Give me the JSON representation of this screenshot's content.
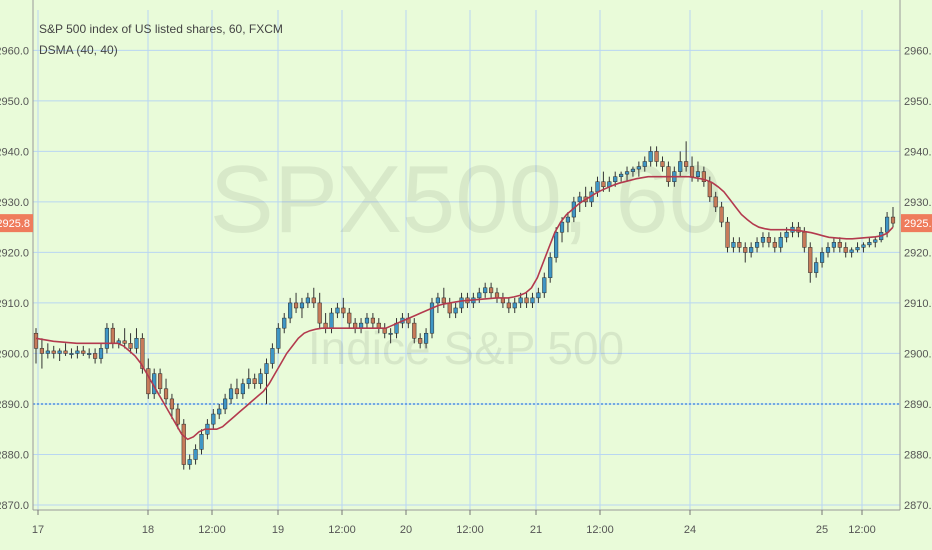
{
  "header": {
    "title": "S&P 500 index of US listed shares, 60, FXCM",
    "indicator": "DSMA (40, 40)"
  },
  "watermark": {
    "symbol": "SPX500, 60",
    "description": "Indice S&P 500"
  },
  "last_price_label": "2925.8",
  "chart_data": {
    "type": "candlestick",
    "y_ticks": [
      "2870.0",
      "2880.0",
      "2890.0",
      "2900.0",
      "2910.0",
      "2920.0",
      "2930.0",
      "2940.0",
      "2950.0",
      "2960.0"
    ],
    "x_labels": [
      "17",
      "18",
      "12:00",
      "19",
      "12:00",
      "20",
      "12:00",
      "21",
      "12:00",
      "24",
      "25",
      "12:00"
    ],
    "ylim": [
      2869,
      2968
    ],
    "last_price": 2925.8,
    "horizontal_line": 2890.0,
    "colors": {
      "up": "#3f96c5",
      "down": "#c77b5a",
      "wick": "#333333",
      "dsma": "#b33a4e",
      "grid": "#b9d6f2",
      "hline": "#4a90e2",
      "price_tag": "#ef7c5c"
    },
    "candles": [
      [
        2904,
        2905,
        2898,
        2901
      ],
      [
        2901,
        2903,
        2897,
        2900
      ],
      [
        2900,
        2902,
        2899,
        2900.5
      ],
      [
        2900.5,
        2901.5,
        2899,
        2900
      ],
      [
        2900,
        2901,
        2898.5,
        2900.5
      ],
      [
        2900.5,
        2902,
        2899.5,
        2900
      ],
      [
        2900,
        2901,
        2899,
        2900
      ],
      [
        2900,
        2901.5,
        2899,
        2900.5
      ],
      [
        2900.5,
        2901.5,
        2899.5,
        2900
      ],
      [
        2900,
        2901,
        2899,
        2900
      ],
      [
        2900,
        2901,
        2898,
        2899
      ],
      [
        2899,
        2902,
        2898,
        2901
      ],
      [
        2901,
        2906,
        2900,
        2905
      ],
      [
        2905,
        2906,
        2901,
        2902
      ],
      [
        2902,
        2903,
        2901,
        2902.5
      ],
      [
        2902.5,
        2905,
        2901,
        2902
      ],
      [
        2902,
        2904,
        2900,
        2901
      ],
      [
        2901,
        2905,
        2900,
        2903
      ],
      [
        2903,
        2904,
        2896,
        2897
      ],
      [
        2897,
        2899,
        2891,
        2892
      ],
      [
        2892,
        2897,
        2891,
        2896
      ],
      [
        2896,
        2897,
        2892,
        2893
      ],
      [
        2893,
        2895,
        2890,
        2891
      ],
      [
        2891,
        2892,
        2887,
        2889
      ],
      [
        2889,
        2890,
        2885,
        2886
      ],
      [
        2886,
        2887,
        2877,
        2878
      ],
      [
        2878,
        2880,
        2877,
        2879
      ],
      [
        2879,
        2882,
        2878,
        2881
      ],
      [
        2881,
        2885,
        2880,
        2884
      ],
      [
        2884,
        2887,
        2883,
        2886
      ],
      [
        2886,
        2889,
        2885,
        2888
      ],
      [
        2888,
        2890,
        2887,
        2889
      ],
      [
        2889,
        2892,
        2888,
        2891
      ],
      [
        2891,
        2894,
        2890,
        2893
      ],
      [
        2893,
        2895,
        2891,
        2892
      ],
      [
        2892,
        2895,
        2891,
        2894
      ],
      [
        2894,
        2897,
        2893,
        2895
      ],
      [
        2895,
        2896,
        2893,
        2894
      ],
      [
        2894,
        2897,
        2893,
        2896
      ],
      [
        2896,
        2899,
        2890,
        2898
      ],
      [
        2898,
        2902,
        2897,
        2901
      ],
      [
        2901,
        2906,
        2900,
        2905
      ],
      [
        2905,
        2908,
        2904,
        2907
      ],
      [
        2907,
        2911,
        2906,
        2910
      ],
      [
        2910,
        2912,
        2908,
        2909
      ],
      [
        2909,
        2911,
        2907,
        2910
      ],
      [
        2910,
        2912,
        2909,
        2911
      ],
      [
        2911,
        2913,
        2909,
        2910
      ],
      [
        2910,
        2912,
        2905,
        2906
      ],
      [
        2906,
        2908,
        2904,
        2905
      ],
      [
        2905,
        2909,
        2904,
        2908
      ],
      [
        2908,
        2910,
        2907,
        2909
      ],
      [
        2909,
        2911,
        2907,
        2908
      ],
      [
        2908,
        2909,
        2905,
        2906
      ],
      [
        2906,
        2907,
        2904,
        2905
      ],
      [
        2905,
        2907,
        2904,
        2906
      ],
      [
        2906,
        2908,
        2905,
        2907
      ],
      [
        2907,
        2908,
        2905,
        2906
      ],
      [
        2906,
        2907,
        2904,
        2905
      ],
      [
        2905,
        2906,
        2903,
        2904
      ],
      [
        2904,
        2905,
        2902,
        2904
      ],
      [
        2904,
        2907,
        2903,
        2906
      ],
      [
        2906,
        2908,
        2905,
        2907
      ],
      [
        2907,
        2908,
        2905,
        2906
      ],
      [
        2906,
        2907,
        2902,
        2903
      ],
      [
        2903,
        2904,
        2901,
        2902
      ],
      [
        2902,
        2905,
        2901,
        2904
      ],
      [
        2904,
        2911,
        2903,
        2910
      ],
      [
        2910,
        2912,
        2908,
        2911
      ],
      [
        2911,
        2913,
        2909,
        2910
      ],
      [
        2910,
        2911,
        2907,
        2908
      ],
      [
        2908,
        2910,
        2907,
        2909
      ],
      [
        2909,
        2912,
        2908,
        2911
      ],
      [
        2911,
        2912,
        2909,
        2910
      ],
      [
        2910,
        2912,
        2909,
        2911
      ],
      [
        2911,
        2913,
        2910,
        2912
      ],
      [
        2912,
        2914,
        2911,
        2913
      ],
      [
        2913,
        2914,
        2911,
        2912
      ],
      [
        2912,
        2913,
        2910,
        2911
      ],
      [
        2911,
        2912,
        2909,
        2910
      ],
      [
        2910,
        2911,
        2908,
        2909
      ],
      [
        2909,
        2911,
        2908,
        2910
      ],
      [
        2910,
        2912,
        2909,
        2911
      ],
      [
        2911,
        2912,
        2909,
        2910
      ],
      [
        2910,
        2912,
        2909,
        2911
      ],
      [
        2911,
        2913,
        2910,
        2912
      ],
      [
        2912,
        2916,
        2911,
        2915
      ],
      [
        2915,
        2920,
        2914,
        2919
      ],
      [
        2919,
        2925,
        2918,
        2924
      ],
      [
        2924,
        2927,
        2922,
        2926
      ],
      [
        2926,
        2928,
        2924,
        2927
      ],
      [
        2927,
        2931,
        2926,
        2930
      ],
      [
        2930,
        2932,
        2928,
        2931
      ],
      [
        2931,
        2933,
        2929,
        2930
      ],
      [
        2930,
        2933,
        2929,
        2932
      ],
      [
        2932,
        2935,
        2931,
        2934
      ],
      [
        2934,
        2936,
        2932,
        2933
      ],
      [
        2933,
        2935,
        2932,
        2934
      ],
      [
        2934,
        2936,
        2933,
        2935
      ],
      [
        2935,
        2936,
        2934,
        2935.5
      ],
      [
        2935.5,
        2937,
        2934,
        2936
      ],
      [
        2936,
        2937,
        2935,
        2936.5
      ],
      [
        2936.5,
        2938,
        2935,
        2937
      ],
      [
        2937,
        2939,
        2936,
        2938
      ],
      [
        2938,
        2941,
        2937,
        2940
      ],
      [
        2940,
        2941,
        2937,
        2938
      ],
      [
        2938,
        2939,
        2936,
        2937
      ],
      [
        2937,
        2938,
        2933,
        2934
      ],
      [
        2934,
        2937,
        2933,
        2936
      ],
      [
        2936,
        2940,
        2935,
        2938
      ],
      [
        2938,
        2942,
        2936,
        2937
      ],
      [
        2937,
        2939,
        2934,
        2935
      ],
      [
        2935,
        2938,
        2934,
        2936
      ],
      [
        2936,
        2937,
        2933,
        2934
      ],
      [
        2934,
        2935,
        2930,
        2931
      ],
      [
        2931,
        2932,
        2928,
        2929
      ],
      [
        2929,
        2930,
        2925,
        2926
      ],
      [
        2926,
        2927,
        2920,
        2921
      ],
      [
        2921,
        2923,
        2920,
        2922
      ],
      [
        2922,
        2923,
        2920,
        2921
      ],
      [
        2921,
        2922,
        2918,
        2920
      ],
      [
        2920,
        2922,
        2919,
        2921
      ],
      [
        2921,
        2923,
        2920,
        2922
      ],
      [
        2922,
        2924,
        2921,
        2923
      ],
      [
        2923,
        2924,
        2921,
        2922
      ],
      [
        2922,
        2923,
        2920,
        2921
      ],
      [
        2921,
        2924,
        2920,
        2923
      ],
      [
        2923,
        2925,
        2922,
        2924
      ],
      [
        2924,
        2926,
        2923,
        2925
      ],
      [
        2925,
        2926,
        2923,
        2924
      ],
      [
        2924,
        2925,
        2920,
        2921
      ],
      [
        2921,
        2922,
        2914,
        2916
      ],
      [
        2916,
        2919,
        2915,
        2918
      ],
      [
        2918,
        2921,
        2917,
        2920
      ],
      [
        2920,
        2922,
        2919,
        2921
      ],
      [
        2921,
        2923,
        2920,
        2922
      ],
      [
        2922,
        2923,
        2920,
        2921
      ],
      [
        2921,
        2922,
        2919,
        2920
      ],
      [
        2920,
        2921,
        2919,
        2920.5
      ],
      [
        2920.5,
        2922,
        2920,
        2921
      ],
      [
        2921,
        2922,
        2920,
        2921.5
      ],
      [
        2921.5,
        2923,
        2921,
        2922
      ],
      [
        2922,
        2923,
        2921,
        2922.5
      ],
      [
        2922.5,
        2925,
        2922,
        2924
      ],
      [
        2924,
        2928,
        2923,
        2927
      ],
      [
        2927,
        2929,
        2925,
        2925.8
      ]
    ],
    "dsma": [
      2903,
      2902.8,
      2902.6,
      2902.4,
      2902.3,
      2902.2,
      2902.1,
      2902,
      2902,
      2902,
      2902,
      2902,
      2902,
      2902,
      2902,
      2901.5,
      2900.5,
      2899.5,
      2898,
      2896,
      2894,
      2892,
      2890,
      2888,
      2886,
      2884,
      2883,
      2883.5,
      2884.5,
      2885,
      2885,
      2885,
      2885.5,
      2886.5,
      2887.5,
      2888.5,
      2889.5,
      2890.5,
      2891.5,
      2892.5,
      2894,
      2896,
      2898,
      2900,
      2901.5,
      2903,
      2904,
      2904.5,
      2904.8,
      2905,
      2905,
      2905,
      2905,
      2905,
      2905,
      2905,
      2905,
      2905,
      2905,
      2905,
      2905,
      2905.5,
      2906,
      2906.5,
      2907,
      2907.5,
      2908,
      2908.5,
      2909,
      2909.5,
      2909.8,
      2910,
      2910.2,
      2910.4,
      2910.5,
      2910.6,
      2910.7,
      2910.8,
      2910.9,
      2911,
      2911,
      2911,
      2911.2,
      2911.5,
      2912,
      2913,
      2915,
      2918,
      2921,
      2924,
      2926,
      2927.5,
      2928.5,
      2929.5,
      2930.3,
      2931,
      2931.7,
      2932.3,
      2932.8,
      2933.3,
      2933.7,
      2934,
      2934.3,
      2934.6,
      2934.8,
      2935,
      2935,
      2935,
      2935,
      2935,
      2935,
      2935,
      2935,
      2934.8,
      2934.6,
      2934.3,
      2933.8,
      2933,
      2932,
      2930.5,
      2929,
      2927.5,
      2926.5,
      2925.6,
      2925,
      2924.7,
      2924.5,
      2924.5,
      2924.5,
      2924.5,
      2924.4,
      2924.3,
      2924.1,
      2923.9,
      2923.6,
      2923.3,
      2923,
      2922.9,
      2922.8,
      2922.7,
      2922.7,
      2922.8,
      2922.9,
      2923,
      2923.1,
      2923.3,
      2923.8,
      2925
    ]
  }
}
